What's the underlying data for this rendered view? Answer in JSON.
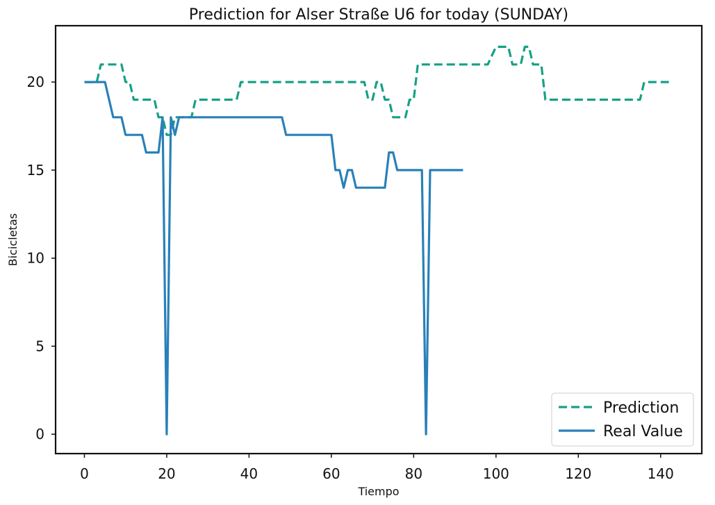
{
  "chart_data": {
    "type": "line",
    "title": "Prediction for Alser Straße U6 for today (SUNDAY)",
    "xlabel": "Tiempo",
    "ylabel": "Bicicletas",
    "xlim": [
      -7,
      150
    ],
    "ylim": [
      -1.1,
      23.2
    ],
    "x_ticks": [
      0,
      20,
      40,
      60,
      80,
      100,
      120,
      140
    ],
    "y_ticks": [
      0,
      5,
      10,
      15,
      20
    ],
    "grid": false,
    "legend_position": "lower-right",
    "series": [
      {
        "name": "Prediction",
        "color": "#16a085",
        "style": "dashed",
        "points": [
          [
            0,
            20
          ],
          [
            3,
            20
          ],
          [
            4,
            21
          ],
          [
            9,
            21
          ],
          [
            10,
            20
          ],
          [
            11,
            20
          ],
          [
            12,
            19
          ],
          [
            17,
            19
          ],
          [
            18,
            18
          ],
          [
            19,
            18
          ],
          [
            20,
            17
          ],
          [
            21,
            17
          ],
          [
            22,
            18
          ],
          [
            26,
            18
          ],
          [
            27,
            19
          ],
          [
            37,
            19
          ],
          [
            38,
            20
          ],
          [
            68,
            20
          ],
          [
            69,
            19
          ],
          [
            70,
            19
          ],
          [
            71,
            20
          ],
          [
            72,
            20
          ],
          [
            73,
            19
          ],
          [
            74,
            19
          ],
          [
            75,
            18
          ],
          [
            78,
            18
          ],
          [
            79,
            19
          ],
          [
            80,
            19
          ],
          [
            81,
            21
          ],
          [
            98,
            21
          ],
          [
            100,
            22
          ],
          [
            103,
            22
          ],
          [
            104,
            21
          ],
          [
            106,
            21
          ],
          [
            107,
            22
          ],
          [
            108,
            22
          ],
          [
            109,
            21
          ],
          [
            111,
            21
          ],
          [
            112,
            19
          ],
          [
            135,
            19
          ],
          [
            136,
            20
          ],
          [
            142,
            20
          ]
        ]
      },
      {
        "name": "Real Value",
        "color": "#2980b9",
        "style": "solid",
        "points": [
          [
            0,
            20
          ],
          [
            5,
            20
          ],
          [
            7,
            18
          ],
          [
            9,
            18
          ],
          [
            10,
            17
          ],
          [
            14,
            17
          ],
          [
            15,
            16
          ],
          [
            18,
            16
          ],
          [
            19,
            18
          ],
          [
            20,
            0
          ],
          [
            21,
            18
          ],
          [
            22,
            17
          ],
          [
            23,
            18
          ],
          [
            48,
            18
          ],
          [
            49,
            17
          ],
          [
            60,
            17
          ],
          [
            61,
            15
          ],
          [
            62,
            15
          ],
          [
            63,
            14
          ],
          [
            64,
            15
          ],
          [
            65,
            15
          ],
          [
            66,
            14
          ],
          [
            73,
            14
          ],
          [
            74,
            16
          ],
          [
            75,
            16
          ],
          [
            76,
            15
          ],
          [
            82,
            15
          ],
          [
            83,
            0
          ],
          [
            84,
            15
          ],
          [
            92,
            15
          ]
        ]
      }
    ]
  }
}
